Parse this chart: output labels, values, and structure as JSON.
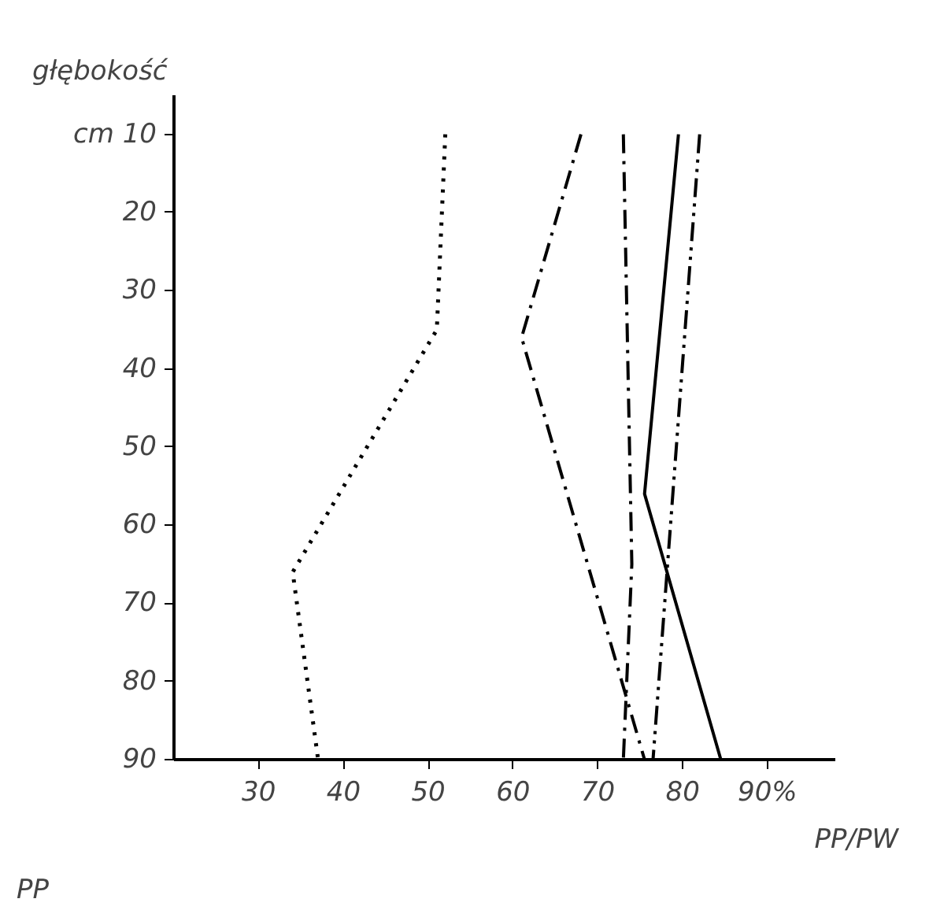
{
  "chart_data": {
    "type": "line",
    "ylabel": "głębokość",
    "xlabel": "PP/PW",
    "xlim": [
      20,
      98
    ],
    "xticks": [
      30,
      40,
      50,
      60,
      70,
      80,
      {
        "value": 90,
        "label": "90%"
      }
    ],
    "ylim": [
      90,
      5
    ],
    "yticks": [
      {
        "value": 10,
        "label": "cm 10"
      },
      20,
      30,
      40,
      50,
      60,
      70,
      80,
      90
    ],
    "grid": false,
    "marker": "none",
    "annotations": [
      "PP"
    ],
    "series": [
      {
        "color": "#000000",
        "line_style": "dotted",
        "x": [
          52,
          51,
          34,
          37
        ],
        "values": [
          10,
          35,
          66,
          90
        ]
      },
      {
        "color": "#000000",
        "line_style": "dashdot",
        "x": [
          68,
          61,
          75.5
        ],
        "values": [
          10,
          36,
          90
        ]
      },
      {
        "color": "#000000",
        "line_style": "dashdot",
        "x": [
          73,
          74,
          73
        ],
        "values": [
          10,
          65,
          90
        ]
      },
      {
        "color": "#000000",
        "line_style": "solid",
        "x": [
          79.5,
          75.5,
          84.5
        ],
        "values": [
          10,
          56,
          90
        ]
      },
      {
        "color": "#000000",
        "line_style": "dashdotdot",
        "x": [
          82,
          76.5
        ],
        "values": [
          10,
          90
        ]
      }
    ]
  }
}
